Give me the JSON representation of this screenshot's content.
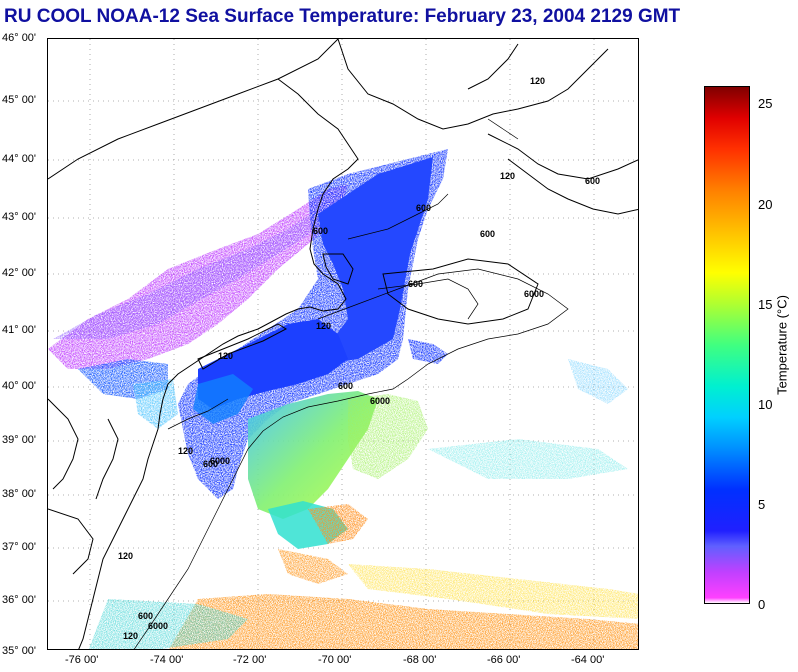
{
  "title": "RU COOL  NOAA-12  Sea Surface Temperature:  February 23, 2004 2129 GMT",
  "map": {
    "lat_labels": [
      "46° 00'",
      "45° 00'",
      "44° 00'",
      "43° 00'",
      "42° 00'",
      "41° 00'",
      "40° 00'",
      "39° 00'",
      "38° 00'",
      "37° 00'",
      "36° 00'",
      "35° 00'"
    ],
    "lon_labels": [
      "-76 00'",
      "-74 00'",
      "-72 00'",
      "-70 00'",
      "-68 00'",
      "-66 00'",
      "-64 00'"
    ],
    "contour_labels": [
      "120",
      "120",
      "120",
      "600",
      "600",
      "600",
      "6000",
      "600",
      "6000",
      "120",
      "600",
      "6000",
      "120",
      "600",
      "6000",
      "120",
      "120",
      "600",
      "600"
    ],
    "colors": {
      "land_line": "#000000",
      "cold": "#1a3cff",
      "coldest": "#c040ff",
      "warm": "#80ff60",
      "hot": "#ff9020"
    }
  },
  "colorbar": {
    "title": "Temperature (°C)",
    "ticks": [
      "25",
      "20",
      "15",
      "10",
      "5",
      "0"
    ]
  }
}
